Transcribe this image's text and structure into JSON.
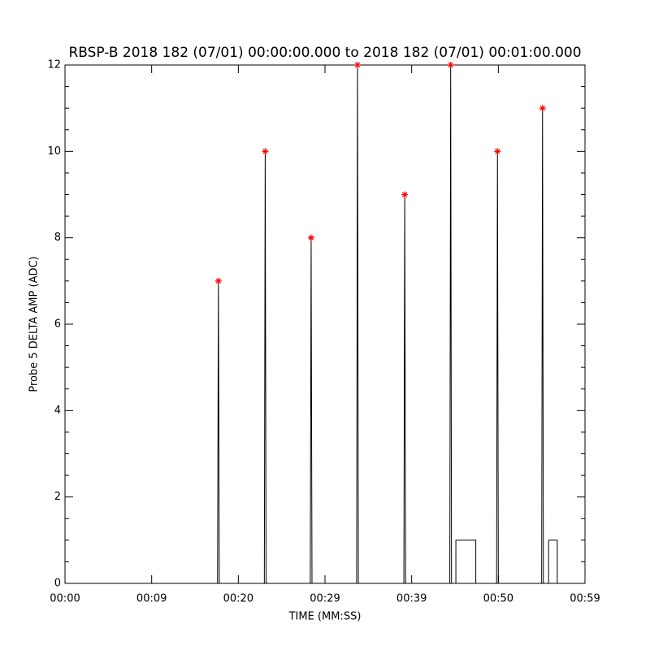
{
  "chart_data": {
    "type": "line",
    "title": "RBSP-B 2018 182 (07/01) 00:00:00.000 to 2018 182 (07/01) 00:01:00.000",
    "xlabel": "TIME (MM:SS)",
    "ylabel": "Probe 5 DELTA AMP (ADC)",
    "xlim": [
      0,
      60
    ],
    "ylim": [
      0,
      12
    ],
    "xticks": [
      {
        "value": 0,
        "label": "00:00"
      },
      {
        "value": 10,
        "label": "00:09"
      },
      {
        "value": 20,
        "label": "00:20"
      },
      {
        "value": 30,
        "label": "00:29"
      },
      {
        "value": 40,
        "label": "00:39"
      },
      {
        "value": 50,
        "label": "00:50"
      },
      {
        "value": 60,
        "label": "00:59"
      }
    ],
    "yticks": [
      0,
      2,
      4,
      6,
      8,
      10,
      12
    ],
    "yminor": 4,
    "series": [
      {
        "type": "line",
        "color": "#000000",
        "x": [
          0,
          17.6,
          17.7,
          17.8,
          23.0,
          23.1,
          23.2,
          28.3,
          28.4,
          28.5,
          33.65,
          33.75,
          33.85,
          39.1,
          39.2,
          39.3,
          44.4,
          44.5,
          44.6,
          45.1,
          45.1,
          47.4,
          47.4,
          49.8,
          49.9,
          50.0,
          55.0,
          55.1,
          55.2,
          55.8,
          55.8,
          56.8,
          56.8,
          60
        ],
        "values": [
          0,
          0,
          7,
          0,
          0,
          10,
          0,
          0,
          8,
          0,
          0,
          12,
          0,
          0,
          9,
          0,
          0,
          12,
          0,
          0,
          1,
          1,
          0,
          0,
          10,
          0,
          0,
          11,
          0,
          0,
          1,
          1,
          0,
          0
        ]
      },
      {
        "type": "scatter",
        "color": "#ff0000",
        "x": [
          17.7,
          23.1,
          28.4,
          33.75,
          39.2,
          44.5,
          49.9,
          55.1
        ],
        "values": [
          7,
          10,
          8,
          12,
          9,
          12,
          10,
          11
        ]
      }
    ]
  }
}
